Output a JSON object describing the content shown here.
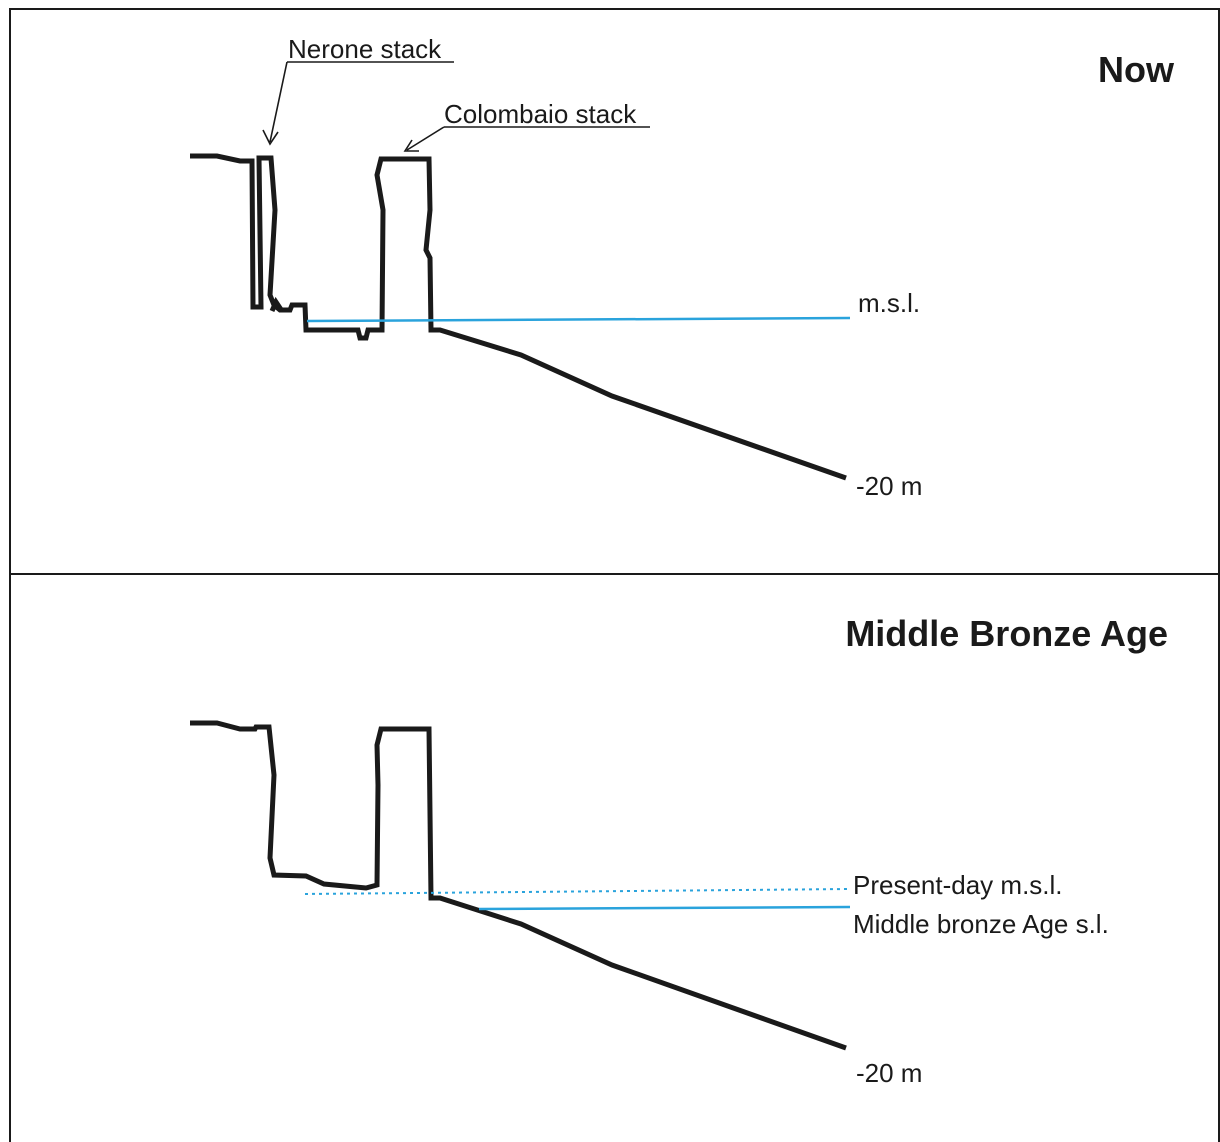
{
  "panels": {
    "top": {
      "title": "Now",
      "labels": {
        "nerone": "Nerone stack",
        "colombaio": "Colombaio stack",
        "msl": "m.s.l.",
        "depth": "-20 m"
      }
    },
    "bottom": {
      "title": "Middle Bronze Age",
      "labels": {
        "present_msl": "Present-day m.s.l.",
        "mba_sl": "Middle bronze Age s.l.",
        "depth": "-20 m"
      }
    }
  },
  "colors": {
    "outline": "#1a1a1a",
    "sea_level": "#2aa3dc"
  }
}
